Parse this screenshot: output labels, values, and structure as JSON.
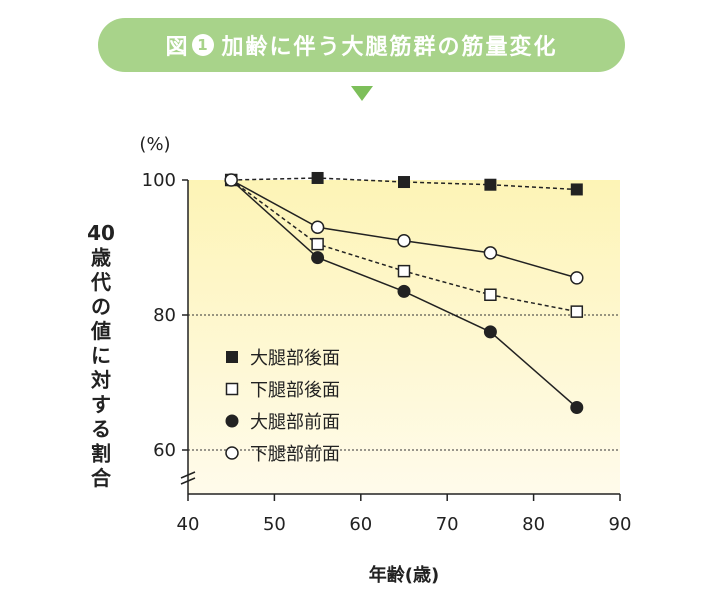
{
  "title": {
    "prefix": "図",
    "number": "1",
    "text": "加齢に伴う大腿筋群の筋量変化"
  },
  "colors": {
    "title_pill": "#a8d38a",
    "arrow": "#7dbf5a",
    "plot_bg_top": "#fdf4b6",
    "plot_bg_bottom": "#fffbeb"
  },
  "chart_data": {
    "type": "line",
    "unit_label": "(%)",
    "xlabel": "年齢(歳)",
    "ylabel": "40歳代の値に対する割合",
    "xlim": [
      40,
      90
    ],
    "ylim": [
      60,
      100
    ],
    "xticks": [
      40,
      50,
      60,
      70,
      80,
      90
    ],
    "yticks": [
      60,
      80,
      100
    ],
    "axis_break": true,
    "legend_position": "left, inside plot",
    "series": [
      {
        "name": "大腿部後面",
        "marker": "filled-square",
        "line": "dashed",
        "x": [
          45,
          55,
          65,
          75,
          85
        ],
        "values": [
          100,
          100.3,
          99.7,
          99.3,
          98.6
        ]
      },
      {
        "name": "下腿部後面",
        "marker": "open-square",
        "line": "dashed",
        "x": [
          45,
          55,
          65,
          75,
          85
        ],
        "values": [
          100,
          90.5,
          86.5,
          83.0,
          80.5
        ]
      },
      {
        "name": "大腿部前面",
        "marker": "filled-circle",
        "line": "solid",
        "x": [
          45,
          55,
          65,
          75,
          85
        ],
        "values": [
          100,
          88.5,
          83.5,
          77.5,
          66.3
        ]
      },
      {
        "name": "下腿部前面",
        "marker": "open-circle",
        "line": "solid",
        "x": [
          45,
          55,
          65,
          75,
          85
        ],
        "values": [
          100,
          93.0,
          91.0,
          89.2,
          85.5
        ]
      }
    ]
  }
}
